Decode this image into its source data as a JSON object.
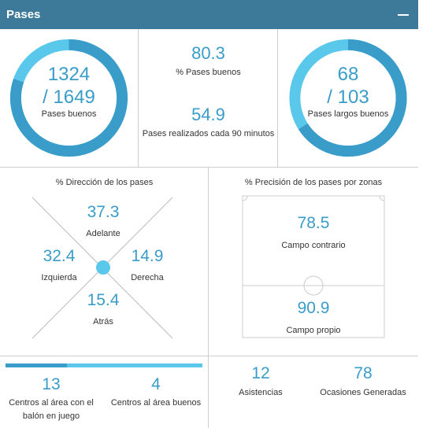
{
  "header": {
    "title": "Pases"
  },
  "passes_ring": {
    "value": "1324",
    "total": "/ 1649",
    "label": "Pases buenos",
    "fraction": 0.803
  },
  "middle_stats": [
    {
      "value": "80.3",
      "label": "% Pases buenos"
    },
    {
      "value": "54.9",
      "label": "Pases realizados cada 90 minutos"
    }
  ],
  "long_ring": {
    "value": "68",
    "total": "/ 103",
    "label": "Pases largos buenos",
    "fraction": 0.66
  },
  "direction": {
    "title": "% Dirección de los pases",
    "forward": {
      "value": "37.3",
      "label": "Adelante"
    },
    "left": {
      "value": "32.4",
      "label": "Izquierda"
    },
    "right": {
      "value": "14.9",
      "label": "Derecha"
    },
    "back": {
      "value": "15.4",
      "label": "Atrás"
    }
  },
  "zones": {
    "title": "% Precisión de los pases por zonas",
    "opponent": {
      "value": "78.5",
      "label": "Campo contrario"
    },
    "own": {
      "value": "90.9",
      "label": "Campo propio"
    }
  },
  "crosses": {
    "open_play": {
      "value": "13",
      "label": "Centros al área con el balón en juego"
    },
    "good": {
      "value": "4",
      "label": "Centros al área buenos"
    },
    "bar_fraction": 0.31
  },
  "bottom_right": [
    {
      "value": "12",
      "label": "Asistencias"
    },
    {
      "value": "78",
      "label": "Ocasiones Generadas"
    }
  ],
  "colors": {
    "header": "#3d7a99",
    "accent": "#3a9cc9",
    "ring_light": "#5ac8ea",
    "ring_dark": "#3a9cc9"
  }
}
